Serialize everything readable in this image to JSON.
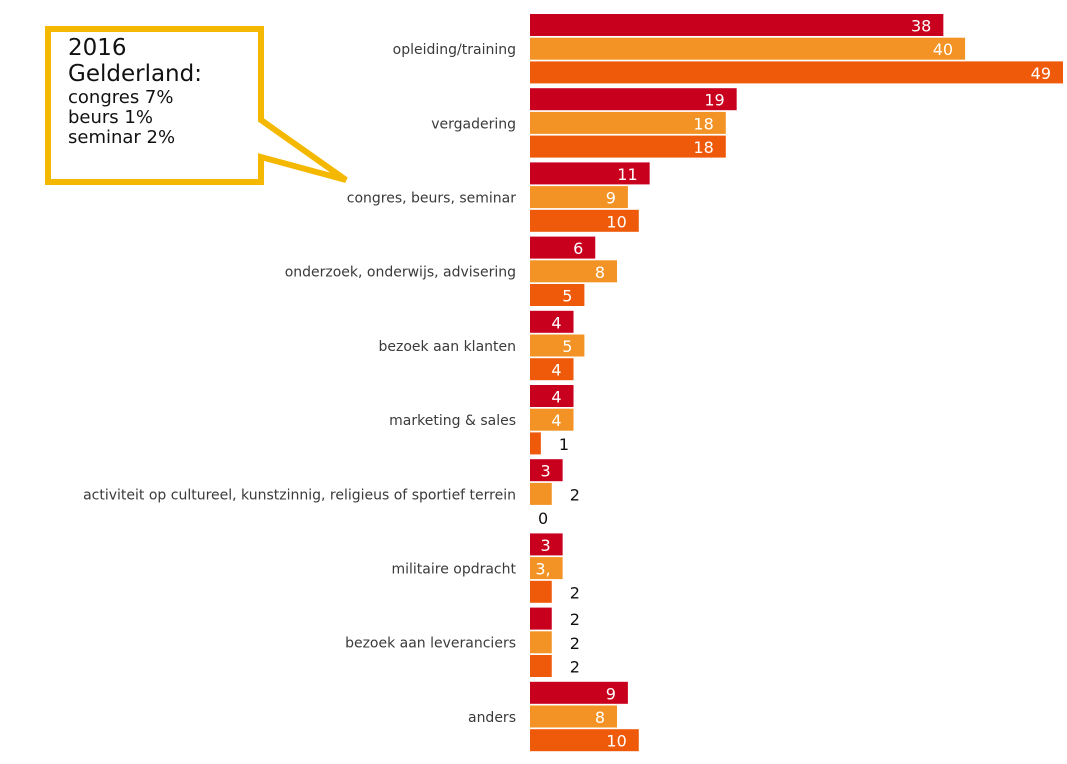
{
  "chart_data": {
    "type": "bar",
    "orientation": "horizontal",
    "categories": [
      "opleiding/training",
      "vergadering",
      "congres, beurs, seminar",
      "onderzoek, onderwijs, advisering",
      "bezoek aan klanten",
      "marketing & sales",
      "activiteit op cultureel, kunstzinnig, religieus of sportief terrein",
      "militaire opdracht",
      "bezoek aan leveranciers",
      "anders"
    ],
    "series": [
      {
        "color": "#c8001e",
        "values": [
          38,
          19,
          11,
          6,
          4,
          4,
          3,
          3,
          2,
          9
        ]
      },
      {
        "color": "#f39325",
        "values": [
          40,
          18,
          9,
          8,
          5,
          4,
          2,
          3,
          2,
          8
        ]
      },
      {
        "color": "#ee5a0a",
        "values": [
          49,
          18,
          10,
          5,
          4,
          1,
          0,
          2,
          2,
          10
        ]
      }
    ],
    "value_labels": [
      [
        "38",
        "19",
        "11",
        "6",
        "4",
        "4",
        "3",
        "3",
        "2",
        "9"
      ],
      [
        "40",
        "18",
        "9",
        "8",
        "5",
        "4",
        "2",
        "3,",
        "2",
        "8"
      ],
      [
        "49",
        "18",
        "10",
        "5",
        "4",
        "1",
        "0",
        "2",
        "2",
        "10"
      ]
    ],
    "xlim": [
      0,
      49
    ],
    "grid": false,
    "legend": "none"
  },
  "callout": {
    "line1": "2016",
    "line2": "Gelderland:",
    "line3": "congres 7%",
    "line4": "beurs 1%",
    "line5": "seminar 2%",
    "border_color": "#f5b800"
  }
}
